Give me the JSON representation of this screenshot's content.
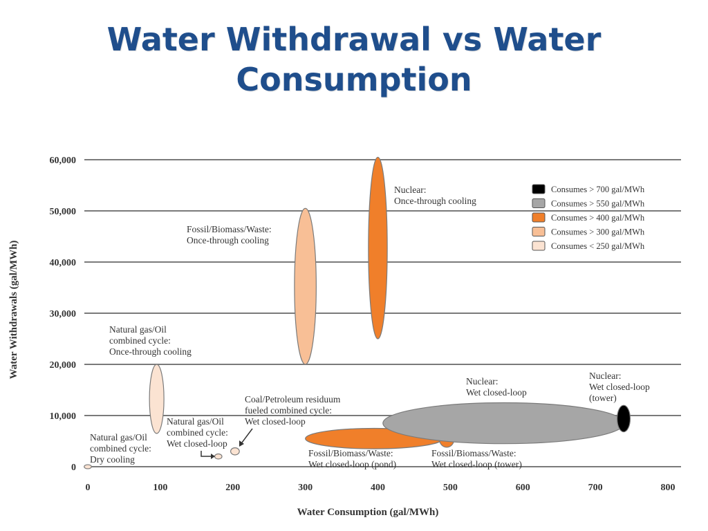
{
  "page": {
    "title_line1": "Water Withdrawal vs Water",
    "title_line2": "Consumption"
  },
  "chart_data": {
    "type": "scatter",
    "title": "Water Withdrawal vs Water Consumption",
    "xlabel": "Water Consumption (gal/MWh)",
    "ylabel": "Water Withdrawals (gal/MWh)",
    "xlim": [
      0,
      800
    ],
    "ylim": [
      0,
      60000
    ],
    "xticks": [
      0,
      100,
      200,
      300,
      400,
      500,
      600,
      700,
      800
    ],
    "xtick_labels": [
      "0",
      "100",
      "200",
      "300",
      "400",
      "500",
      "600",
      "700",
      "800"
    ],
    "yticks": [
      0,
      10000,
      20000,
      30000,
      40000,
      50000,
      60000
    ],
    "ytick_labels": [
      "0",
      "10,000",
      "20,000",
      "30,000",
      "40,000",
      "50,000",
      "60,000"
    ],
    "grid": "horizontal",
    "legend_position": "top-right",
    "legend": [
      {
        "label": "Consumes > 700 gal/MWh",
        "color": "#000000"
      },
      {
        "label": "Consumes > 550 gal/MWh",
        "color": "#a6a6a6"
      },
      {
        "label": "Consumes > 400 gal/MWh",
        "color": "#f07f2a"
      },
      {
        "label": "Consumes > 300 gal/MWh",
        "color": "#f8bf96"
      },
      {
        "label": "Consumes < 250 gal/MWh",
        "color": "#fbe3d2"
      }
    ],
    "regions": [
      {
        "name": "Natural gas/Oil combined cycle: Dry cooling",
        "x_min": -5,
        "x_max": 5,
        "y_min": -400,
        "y_max": 400,
        "color": "#fbe3d2",
        "label_lines": [
          "Natural gas/Oil",
          "combined cycle:",
          "Dry cooling"
        ]
      },
      {
        "name": "Natural gas/Oil combined cycle: Once-through cooling",
        "x_min": 85,
        "x_max": 105,
        "y_min": 6500,
        "y_max": 20000,
        "color": "#fbe3d2",
        "label_lines": [
          "Natural gas/Oil",
          "combined cycle:",
          "Once-through cooling"
        ]
      },
      {
        "name": "Natural gas/Oil combined cycle: Wet closed-loop",
        "x_min": 175,
        "x_max": 185,
        "y_min": 1500,
        "y_max": 2500,
        "color": "#fbe3d2",
        "label_lines": [
          "Natural gas/Oil",
          "combined cycle:",
          "Wet closed-loop"
        ]
      },
      {
        "name": "Coal/Petroleum residuum fueled combined cycle: Wet closed-loop",
        "x_min": 197,
        "x_max": 209,
        "y_min": 2300,
        "y_max": 3700,
        "color": "#fbe3d2",
        "label_lines": [
          "Coal/Petroleum residuum",
          "fueled combined cycle:",
          "Wet closed-loop"
        ]
      },
      {
        "name": "Fossil/Biomass/Waste: Once-through cooling",
        "x_min": 285,
        "x_max": 315,
        "y_min": 20000,
        "y_max": 50500,
        "color": "#f8bf96",
        "label_lines": [
          "Fossil/Biomass/Waste:",
          "Once-through cooling"
        ]
      },
      {
        "name": "Nuclear: Once-through cooling",
        "x_min": 387,
        "x_max": 413,
        "y_min": 25000,
        "y_max": 60500,
        "color": "#f07f2a",
        "label_lines": [
          "Nuclear:",
          "Once-through cooling"
        ]
      },
      {
        "name": "Fossil/Biomass/Waste: Wet closed-loop (pond)",
        "x_min": 300,
        "x_max": 490,
        "y_min": 3500,
        "y_max": 7500,
        "color": "#f07f2a",
        "label_lines": [
          "Fossil/Biomass/Waste:",
          "Wet closed-loop (pond)"
        ]
      },
      {
        "name": "Fossil/Biomass/Waste: Wet closed-loop (tower)",
        "x_min": 485,
        "x_max": 505,
        "y_min": 3800,
        "y_max": 6800,
        "color": "#f07f2a",
        "label_lines": [
          "Fossil/Biomass/Waste:",
          "Wet closed-loop (tower)"
        ]
      },
      {
        "name": "Nuclear: Wet closed-loop",
        "x_min": 407,
        "x_max": 740,
        "y_min": 4500,
        "y_max": 12500,
        "color": "#a6a6a6",
        "label_lines": [
          "Nuclear:",
          "Wet closed-loop"
        ]
      },
      {
        "name": "Nuclear: Wet closed-loop (tower)",
        "x_min": 730,
        "x_max": 748,
        "y_min": 6800,
        "y_max": 12000,
        "color": "#000000",
        "label_lines": [
          "Nuclear:",
          "Wet closed-loop",
          "(tower)"
        ]
      }
    ]
  }
}
